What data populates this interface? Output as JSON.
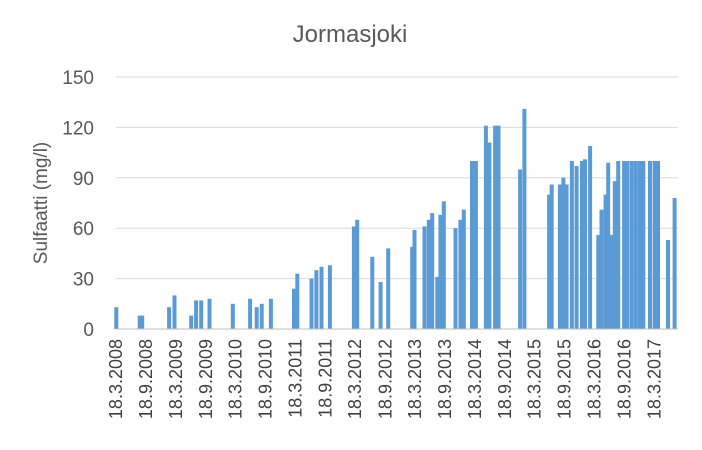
{
  "chart_data": {
    "type": "bar",
    "title": "Jormasjoki",
    "xlabel": "",
    "ylabel": "Sulfaatti (mg/l)",
    "ylim": [
      0,
      150
    ],
    "yticks": [
      0,
      30,
      60,
      90,
      120,
      150
    ],
    "grid": true,
    "legend": "none",
    "bar_color": "#5b9bd5",
    "x_range": [
      "2008-03-18",
      "2017-08-10"
    ],
    "xtick_labels": [
      "18.3.2008",
      "18.9.2008",
      "18.3.2009",
      "18.9.2009",
      "18.3.2010",
      "18.9.2010",
      "18.3.2011",
      "18.9.2011",
      "18.3.2012",
      "18.9.2012",
      "18.3.2013",
      "18.9.2013",
      "18.3.2014",
      "18.9.2014",
      "18.3.2015",
      "18.9.2015",
      "18.3.2016",
      "18.9.2016",
      "18.3.2017"
    ],
    "series": [
      {
        "values": [
          [
            "2008-03-20",
            13
          ],
          [
            "2008-08-10",
            8
          ],
          [
            "2008-08-25",
            8
          ],
          [
            "2009-02-05",
            13
          ],
          [
            "2009-03-10",
            20
          ],
          [
            "2009-06-20",
            8
          ],
          [
            "2009-07-20",
            17
          ],
          [
            "2009-08-20",
            17
          ],
          [
            "2009-10-10",
            18
          ],
          [
            "2010-03-01",
            15
          ],
          [
            "2010-06-15",
            18
          ],
          [
            "2010-07-25",
            13
          ],
          [
            "2010-08-25",
            15
          ],
          [
            "2010-10-20",
            18
          ],
          [
            "2011-03-10",
            24
          ],
          [
            "2011-03-30",
            33
          ],
          [
            "2011-06-25",
            30
          ],
          [
            "2011-07-25",
            35
          ],
          [
            "2011-08-25",
            37
          ],
          [
            "2011-10-15",
            38
          ],
          [
            "2012-03-10",
            61
          ],
          [
            "2012-03-30",
            65
          ],
          [
            "2012-06-30",
            43
          ],
          [
            "2012-08-20",
            28
          ],
          [
            "2012-10-05",
            48
          ],
          [
            "2013-03-01",
            49
          ],
          [
            "2013-03-15",
            59
          ],
          [
            "2013-05-15",
            61
          ],
          [
            "2013-06-10",
            65
          ],
          [
            "2013-07-01",
            69
          ],
          [
            "2013-08-01",
            31
          ],
          [
            "2013-08-20",
            68
          ],
          [
            "2013-09-10",
            76
          ],
          [
            "2013-11-20",
            60
          ],
          [
            "2013-12-20",
            65
          ],
          [
            "2014-01-10",
            71
          ],
          [
            "2014-03-01",
            100
          ],
          [
            "2014-03-25",
            100
          ],
          [
            "2014-05-25",
            121
          ],
          [
            "2014-06-15",
            111
          ],
          [
            "2014-07-20",
            121
          ],
          [
            "2014-08-10",
            121
          ],
          [
            "2014-12-20",
            95
          ],
          [
            "2015-01-15",
            131
          ],
          [
            "2015-06-15",
            80
          ],
          [
            "2015-07-01",
            86
          ],
          [
            "2015-08-20",
            86
          ],
          [
            "2015-09-10",
            90
          ],
          [
            "2015-09-30",
            86
          ],
          [
            "2015-11-01",
            100
          ],
          [
            "2015-11-30",
            97
          ],
          [
            "2016-01-01",
            100
          ],
          [
            "2016-01-20",
            101
          ],
          [
            "2016-02-20",
            109
          ],
          [
            "2016-04-10",
            56
          ],
          [
            "2016-04-30",
            71
          ],
          [
            "2016-05-25",
            80
          ],
          [
            "2016-06-10",
            99
          ],
          [
            "2016-06-30",
            56
          ],
          [
            "2016-07-20",
            88
          ],
          [
            "2016-08-10",
            100
          ],
          [
            "2016-09-15",
            100
          ],
          [
            "2016-10-05",
            100
          ],
          [
            "2016-11-01",
            100
          ],
          [
            "2016-11-25",
            100
          ],
          [
            "2016-12-20",
            100
          ],
          [
            "2017-01-10",
            100
          ],
          [
            "2017-02-20",
            100
          ],
          [
            "2017-03-20",
            100
          ],
          [
            "2017-04-10",
            100
          ],
          [
            "2017-06-10",
            53
          ],
          [
            "2017-07-20",
            78
          ]
        ]
      }
    ]
  }
}
